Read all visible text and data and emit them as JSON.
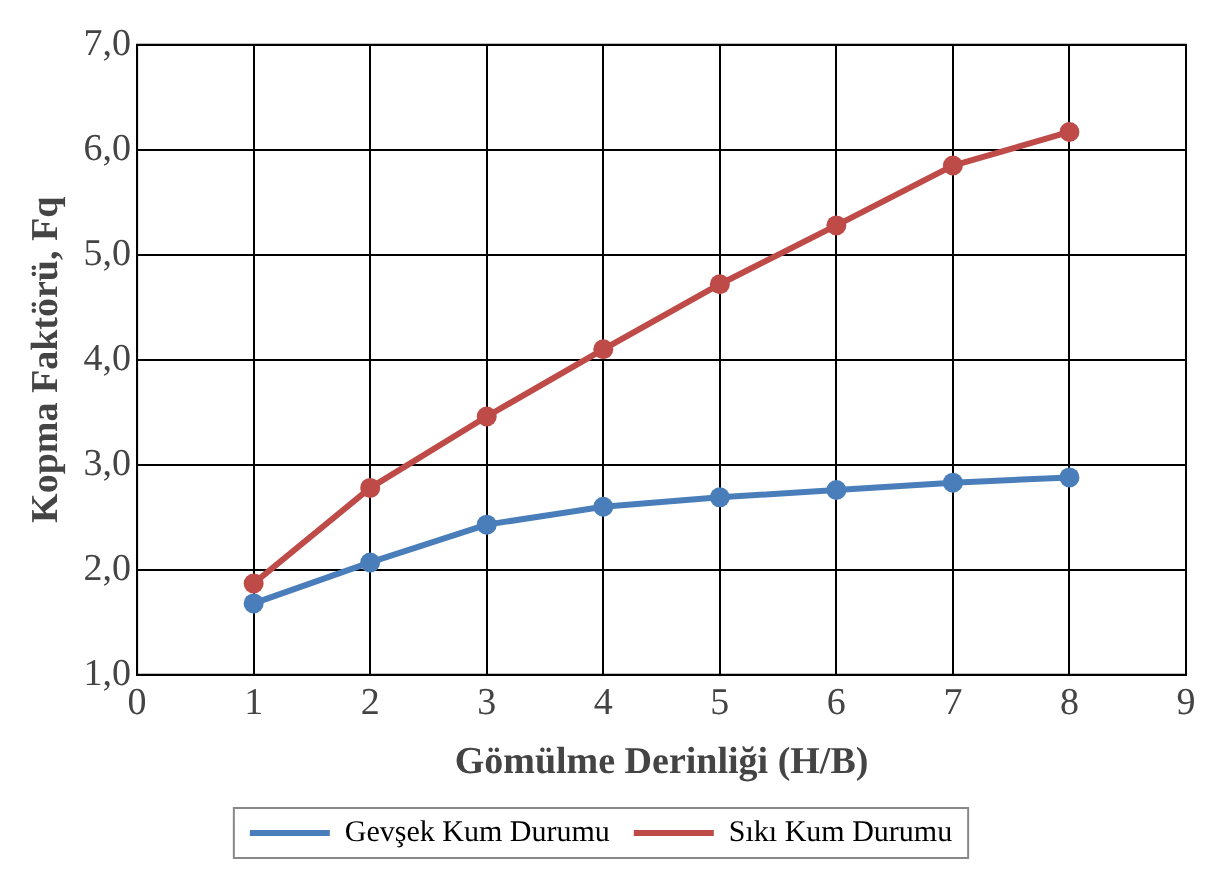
{
  "chart_data": {
    "type": "line",
    "xlabel": "Gömülme Derinliği (H/B)",
    "ylabel": "Kopma Faktörü, Fq",
    "x": [
      1,
      2,
      3,
      4,
      5,
      6,
      7,
      8
    ],
    "series": [
      {
        "name": "Gevşek Kum Durumu",
        "color": "#4a7ebb",
        "values": [
          1.68,
          2.07,
          2.43,
          2.6,
          2.69,
          2.76,
          2.83,
          2.88
        ]
      },
      {
        "name": "Sıkı Kum Durumu",
        "color": "#be4b48",
        "values": [
          1.87,
          2.78,
          3.46,
          4.1,
          4.72,
          5.28,
          5.85,
          6.17
        ]
      }
    ],
    "xlim": [
      0,
      9
    ],
    "xticks": [
      0,
      1,
      2,
      3,
      4,
      5,
      6,
      7,
      8,
      9
    ],
    "ylim": [
      1,
      7
    ],
    "yticks": [
      {
        "value": 1,
        "label": "1,0"
      },
      {
        "value": 2,
        "label": "2,0"
      },
      {
        "value": 3,
        "label": "3,0"
      },
      {
        "value": 4,
        "label": "4,0"
      },
      {
        "value": 5,
        "label": "5,0"
      },
      {
        "value": 6,
        "label": "6,0"
      },
      {
        "value": 7,
        "label": "7,0"
      }
    ],
    "grid": true,
    "legend": "bottom",
    "marker": "circle",
    "line_style": "solid"
  }
}
